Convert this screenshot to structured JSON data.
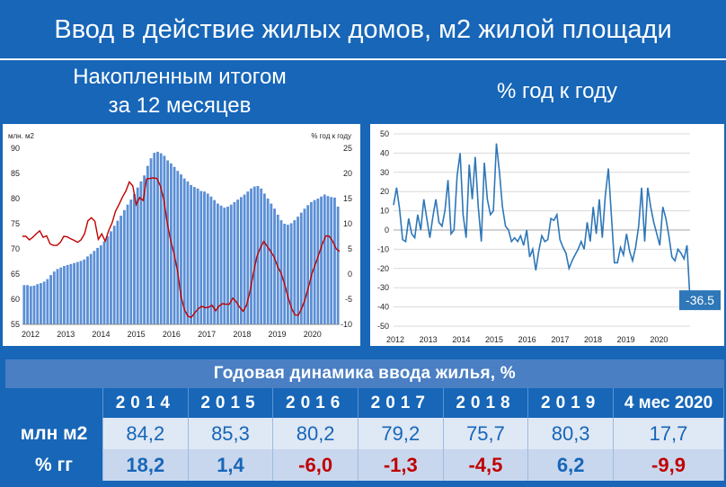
{
  "title": "Ввод в действие жилых домов, м2 жилой площади",
  "subtitle_left": "Накопленным итогом\nза 12 месяцев",
  "subtitle_right": "% год к году",
  "chart_data": [
    {
      "type": "bar",
      "left_axis_label": "млн. м2",
      "right_axis_label": "% год к году",
      "x_tick_labels": [
        "2012",
        "2013",
        "2014",
        "2015",
        "2016",
        "2017",
        "2018",
        "2019",
        "2020"
      ],
      "ylim_left": [
        55,
        90
      ],
      "yticks_left": [
        55,
        60,
        65,
        70,
        75,
        80,
        85,
        90
      ],
      "ylim_right": [
        -10,
        25
      ],
      "yticks_right": [
        -10,
        -5,
        0,
        5,
        10,
        15,
        20,
        25
      ],
      "colors": {
        "bars": "#5b8fd6",
        "line": "#c00000"
      },
      "series": [
        {
          "name": "bars",
          "values": [
            62.8,
            62.8,
            62.6,
            62.7,
            63.0,
            63.2,
            63.5,
            64.0,
            64.8,
            65.5,
            66.0,
            66.3,
            66.6,
            66.8,
            67.0,
            67.2,
            67.4,
            67.6,
            67.9,
            68.5,
            69.0,
            69.6,
            70.2,
            70.7,
            71.5,
            72.5,
            73.5,
            74.6,
            75.6,
            76.6,
            77.7,
            78.8,
            79.8,
            80.9,
            82.2,
            83.4,
            84.6,
            86.5,
            88.0,
            89.1,
            89.3,
            89.0,
            88.5,
            87.6,
            87.0,
            86.3,
            85.5,
            84.8,
            84.0,
            83.4,
            82.7,
            82.3,
            82.0,
            81.5,
            81.4,
            81.0,
            80.4,
            79.7,
            79.0,
            78.6,
            78.2,
            78.4,
            78.8,
            79.3,
            79.8,
            80.3,
            80.8,
            81.4,
            82.0,
            82.4,
            82.5,
            82.0,
            81.0,
            80.0,
            79.0,
            78.0,
            76.8,
            75.7,
            75.0,
            74.8,
            75.1,
            75.7,
            76.4,
            77.2,
            78.0,
            78.7,
            79.3,
            79.7,
            80.0,
            80.4,
            80.8,
            80.5,
            80.3,
            80.2,
            78.4
          ],
          "axis": "left"
        },
        {
          "name": "line",
          "values": [
            7.5,
            7.5,
            6.8,
            7.3,
            8.0,
            8.6,
            7.3,
            7.6,
            6.0,
            5.7,
            5.7,
            6.3,
            7.5,
            7.4,
            7.0,
            6.7,
            6.3,
            6.8,
            8.0,
            10.6,
            11.2,
            10.5,
            6.9,
            8.0,
            6.5,
            8.6,
            10.2,
            12.5,
            13.8,
            15.3,
            16.5,
            18.3,
            17.5,
            13.8,
            15.2,
            14.6,
            18.9,
            19.0,
            19.1,
            19.0,
            17.5,
            14.8,
            10.1,
            6.6,
            4.0,
            0.5,
            -4.5,
            -7.1,
            -8.4,
            -8.6,
            -7.7,
            -6.9,
            -6.4,
            -6.7,
            -6.6,
            -6.2,
            -7.3,
            -6.4,
            -5.9,
            -6.0,
            -6.0,
            -4.8,
            -5.5,
            -6.6,
            -7.4,
            -6.2,
            -3.5,
            0.2,
            3.5,
            5.2,
            6.5,
            5.5,
            4.5,
            3.4,
            1.5,
            0.2,
            -1.9,
            -4.5,
            -6.7,
            -8.1,
            -8.2,
            -6.8,
            -5.0,
            -2.5,
            0.2,
            2.0,
            4.0,
            6.0,
            7.6,
            7.5,
            6.5,
            5.0,
            4.5
          ],
          "axis": "right"
        }
      ]
    },
    {
      "type": "line",
      "x_tick_labels": [
        "2012",
        "2013",
        "2014",
        "2015",
        "2016",
        "2017",
        "2018",
        "2019",
        "2020"
      ],
      "ylim": [
        -50,
        50
      ],
      "yticks": [
        -50,
        -40,
        -30,
        -20,
        -10,
        0,
        10,
        20,
        30,
        40,
        50
      ],
      "colors": {
        "line": "#2e77b8",
        "label_bg": "#2e77b8"
      },
      "last_value_label": "-36.5",
      "series": [
        {
          "values": [
            13,
            22,
            11,
            -5,
            -6,
            6,
            -2,
            -4,
            8,
            0,
            16,
            6,
            -4,
            7,
            16,
            4,
            2,
            10,
            26,
            -2,
            0,
            28,
            40,
            8,
            -4,
            34,
            16,
            38,
            12,
            -6,
            35,
            16,
            8,
            10,
            45,
            30,
            12,
            2,
            0,
            -6,
            -4,
            -6,
            -3,
            -8,
            0,
            -14,
            -10,
            -21,
            -11,
            -3,
            -6,
            -5,
            6,
            5,
            8,
            -5,
            -9,
            -12,
            -20,
            -16,
            -13,
            -10,
            -6,
            -10,
            4,
            -6,
            12,
            -2,
            16,
            -4,
            18,
            32,
            8,
            -17,
            -17,
            -9,
            -13,
            -2,
            -11,
            -16,
            -9,
            2,
            22,
            -6,
            22,
            12,
            4,
            -2,
            -8,
            12,
            6,
            -3,
            -14,
            -16,
            -10,
            -12,
            -15,
            -8,
            -36.5
          ],
          "axis": "left"
        }
      ]
    }
  ],
  "table": {
    "caption": "Годовая динамика ввода жилья, %",
    "headers": [
      "2014",
      "2015",
      "2016",
      "2017",
      "2018",
      "2019",
      "4 мес 2020"
    ],
    "rows": [
      {
        "label": "млн м2",
        "values": [
          "84,2",
          "85,3",
          "80,2",
          "79,2",
          "75,7",
          "80,3",
          "17,7"
        ]
      },
      {
        "label": "% гг",
        "values": [
          "18,2",
          "1,4",
          "-6,0",
          "-1,3",
          "-4,5",
          "6,2",
          "-9,9"
        ]
      }
    ]
  }
}
